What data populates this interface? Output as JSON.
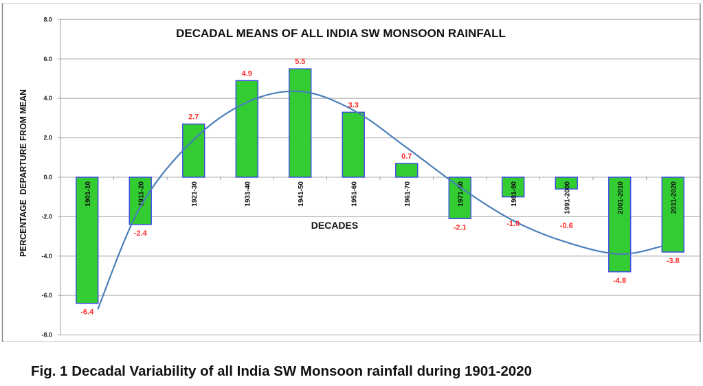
{
  "caption": "Fig. 1 Decadal Variability of all India SW Monsoon rainfall during 1901-2020",
  "colors": {
    "bar_fill": "#33cc33",
    "bar_border": "#3b3bf0",
    "trend_line": "#4a7ebb",
    "value_label": "#ff2a2a",
    "gridline": "#bdbdbd"
  },
  "chart_data": {
    "type": "bar",
    "title": "DECADAL MEANS OF ALL INDIA SW MONSOON RAINFALL",
    "xlabel": "DECADES",
    "ylabel": "PERCENTAGE  DEPARTURE FROM MEAN",
    "ylim": [
      -8.0,
      8.0
    ],
    "yticks": [
      "8.0",
      "6.0",
      "4.0",
      "2.0",
      "0.0",
      "-2.0",
      "-4.0",
      "-6.0",
      "-8.0"
    ],
    "grid": true,
    "categories": [
      "1901-10",
      "1911-20",
      "1921-30",
      "1931-40",
      "1941-50",
      "1951-60",
      "1961-70",
      "1971-80",
      "1981-90",
      "1991-2000",
      "2001-2010",
      "2011-2020"
    ],
    "values": [
      -6.4,
      -2.4,
      2.7,
      4.9,
      5.5,
      3.3,
      0.7,
      -2.1,
      -1.0,
      -0.6,
      -4.8,
      -3.8
    ],
    "value_labels": [
      "-6.4",
      "-2.4",
      "2.7",
      "4.9",
      "5.5",
      "3.3",
      "0.7",
      "-2.1",
      "-1.0",
      "-0.6",
      "-4.8",
      "-3.8"
    ],
    "trendline": {
      "type": "polynomial",
      "x_index": [
        0.2,
        1,
        2,
        3,
        4,
        5,
        6,
        7,
        8,
        9,
        10,
        10.8
      ],
      "values": [
        -6.7,
        -1.5,
        1.9,
        3.8,
        4.35,
        3.4,
        1.5,
        -0.5,
        -2.2,
        -3.3,
        -3.9,
        -3.5
      ]
    }
  }
}
